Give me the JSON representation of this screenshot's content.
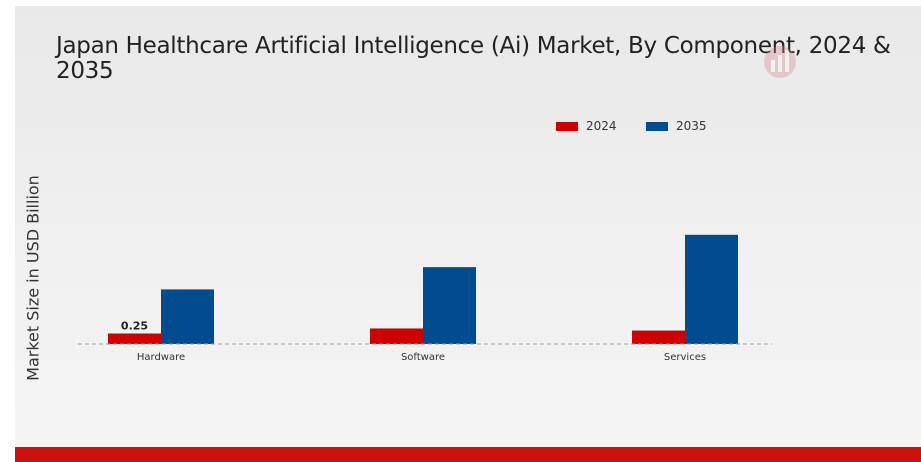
{
  "chart_data": {
    "type": "bar",
    "title": "Japan Healthcare Artificial Intelligence (Ai) Market, By Component, 2024 & 2035",
    "xlabel": "",
    "ylabel": "Market Size in USD Billion",
    "categories": [
      "Hardware",
      "Software",
      "Services"
    ],
    "series": [
      {
        "name": "2024",
        "color": "#cc0000",
        "values": [
          0.25,
          0.37,
          0.32
        ]
      },
      {
        "name": "2035",
        "color": "#004c8f",
        "values": [
          1.3,
          1.83,
          2.6
        ]
      }
    ],
    "data_labels": [
      {
        "series": 0,
        "index": 0,
        "text": "0.25"
      }
    ],
    "ylim": [
      0,
      3.2
    ],
    "grid": false,
    "legend_position": "top-right",
    "baseline_style": "dashed"
  }
}
